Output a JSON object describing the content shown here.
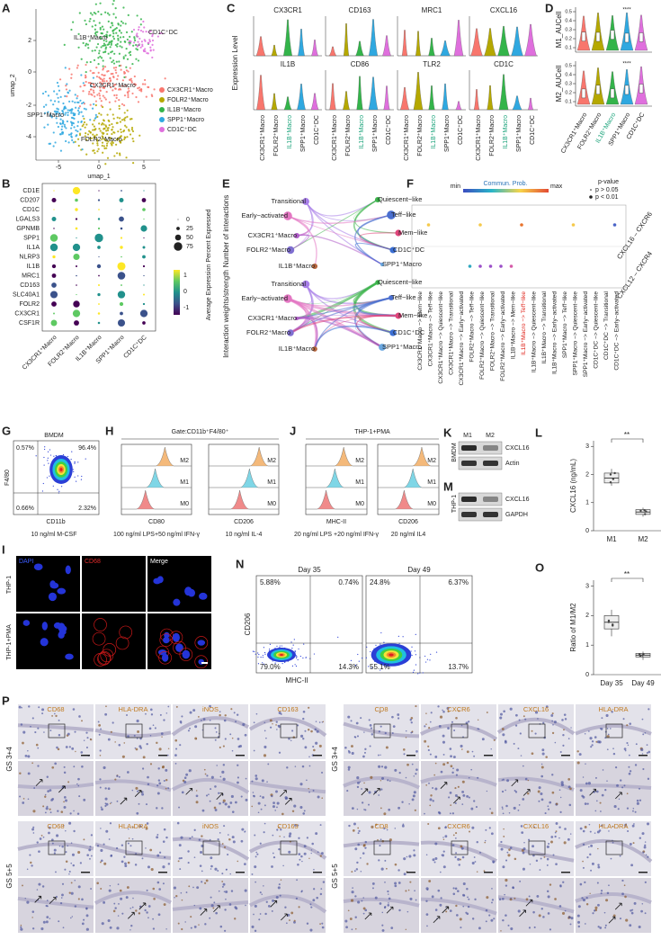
{
  "cell_types": [
    {
      "name": "CX3CR1⁺Macro",
      "color": "#f8766d"
    },
    {
      "name": "FOLR2⁺Macro",
      "color": "#b5a800"
    },
    {
      "name": "IL1B⁺Macro",
      "color": "#33b44a"
    },
    {
      "name": "SPP1⁺Macro",
      "color": "#2fa8e0"
    },
    {
      "name": "CD1C⁺DC",
      "color": "#df6fdd"
    }
  ],
  "A": {
    "letter": "A",
    "x_label": "umap_1",
    "y_label": "umap_2",
    "x_ticks": [
      "-5",
      "0",
      "5"
    ],
    "y_ticks": [
      "2",
      "0",
      "-2",
      "-4"
    ]
  },
  "B": {
    "letter": "B",
    "genes": [
      "CD1E",
      "CD207",
      "CD1C",
      "LGALS3",
      "GPNMB",
      "SPP1",
      "IL1A",
      "NLRP3",
      "IL1B",
      "MRC1",
      "CD163",
      "SLC40A1",
      "FOLR2",
      "CX3CR1",
      "CSF1R"
    ],
    "size_legend_title": "Percent Expressed",
    "size_legend": [
      "0",
      "25",
      "50",
      "75"
    ],
    "color_legend_title": "Average Expression",
    "color_legend": [
      "1",
      "0",
      "-1"
    ]
  },
  "C": {
    "letter": "C",
    "y_label": "Expression Level",
    "genes": [
      "CX3CR1",
      "CD163",
      "MRC1",
      "CXCL16",
      "IL1B",
      "CD86",
      "TLR2",
      "CD1C"
    ]
  },
  "D": {
    "letter": "D",
    "rows": [
      "M1_AUCell",
      "M2_AUCell"
    ],
    "yticks": [
      "0.5",
      "0.4",
      "0.3",
      "0.2",
      "0.1"
    ],
    "significance": "****"
  },
  "E": {
    "letter": "E",
    "titles": [
      "Number of interactions",
      "Interaction weights/strength"
    ],
    "nodes": [
      "Transitional",
      "Quiescent−like",
      "Early−activated",
      "Teff−like",
      "CX3CR1⁺Macro",
      "Mem−like",
      "FOLR2⁺Macro",
      "CD1C⁺DC",
      "IL1B⁺Macro",
      "SPP1⁺Macro"
    ]
  },
  "F": {
    "letter": "F",
    "legend_title": "Commun. Prob.",
    "min": "min",
    "max": "max",
    "p_title": "p-value",
    "p_labels": [
      "p > 0.05",
      "p < 0.01"
    ],
    "rows": [
      "CXCL16 – CXCR6",
      "CXCL12 – CXCR4"
    ],
    "columns": [
      "CX3CR1⁺Macro −> Mem−like",
      "CX3CR1⁺Macro −> Teff−like",
      "CX3CR1⁺Macro −> Quiescent−like",
      "CX3CR1⁺Macro −> Transitional",
      "CX3CR1⁺Macro −> Early−activated",
      "FOLR2⁺Macro −> Teff−like",
      "FOLR2⁺Macro −> Quiescent−like",
      "FOLR2⁺Macro −> Transitional",
      "FOLR2⁺Macro −> Early−activated",
      "IL1B⁺Macro −> Mem−like",
      "IL1B⁺Macro −> Teff−like",
      "IL1B⁺Macro −> Quiescent−like",
      "IL1B⁺Macro −> Transitional",
      "IL1B⁺Macro −> Early−activated",
      "SPP1⁺Macro −> Teff−like",
      "SPP1⁺Macro −> Quiescent−like",
      "SPP1⁺Macro −> Early−activated",
      "CD1C⁺DC −> Quiescent−like",
      "CD1C⁺DC −> Transitional",
      "CD1C⁺DC −> Early−activated"
    ]
  },
  "G": {
    "letter": "G",
    "title": "BMDM",
    "quadrants": [
      "0.57%",
      "96.4%",
      "0.66%",
      "2.32%"
    ],
    "x_label": "CD11b",
    "y_label": "F4/80",
    "caption": "10 ng/ml M-CSF"
  },
  "H": {
    "letter": "H",
    "header": "Gate:CD11b⁺F4/80⁺",
    "groups": [
      "M2",
      "M1",
      "M0"
    ],
    "hists": [
      {
        "x_label": "CD80",
        "caption": "100 ng/ml LPS+50 ng/ml IFN-γ"
      },
      {
        "x_label": "CD206",
        "caption": "10 ng/ml IL-4"
      }
    ]
  },
  "J": {
    "letter": "J",
    "header": "THP-1+PMA",
    "groups": [
      "M2",
      "M1",
      "M0"
    ],
    "hists": [
      {
        "x_label": "MHC-II",
        "caption": "20 ng/ml LPS +20 ng/ml IFN-γ"
      },
      {
        "x_label": "CD206",
        "caption": "20 ng/ml IL4"
      }
    ]
  },
  "K": {
    "letter": "K",
    "columns": [
      "M1",
      "M2"
    ],
    "side": "BMDM",
    "bands": [
      "CXCL16",
      "Actin"
    ]
  },
  "M": {
    "letter": "M",
    "side": "THP-1",
    "bands": [
      "CXCL16",
      "GAPDH"
    ]
  },
  "L": {
    "letter": "L",
    "y_label": "CXCL16 (ng/mL)",
    "yticks": [
      "0",
      "1",
      "2",
      "3"
    ],
    "categories": [
      "M1",
      "M2"
    ],
    "significance": "**"
  },
  "I": {
    "letter": "I",
    "columns": [
      "DAPI",
      "CD68",
      "Merge"
    ],
    "rows": [
      "THP-1",
      "THP-1+PMA"
    ]
  },
  "N": {
    "letter": "N",
    "titles": [
      "Day 35",
      "Day 49"
    ],
    "quadrants": [
      [
        "5.88%",
        "0.74%",
        "79.0%",
        "14.3%"
      ],
      [
        "24.8%",
        "6.37%",
        "55.1%",
        "13.7%"
      ]
    ],
    "x_label": "MHC-II",
    "y_label": "CD206"
  },
  "O": {
    "letter": "O",
    "y_label": "Ratio of M1/M2",
    "yticks": [
      "0",
      "1",
      "2",
      "3"
    ],
    "categories": [
      "Day 35",
      "Day 49"
    ],
    "significance": "**"
  },
  "P": {
    "letter": "P",
    "left_stains": [
      "CD68",
      "HLA-DRA",
      "iNOS",
      "CD163"
    ],
    "right_stains": [
      "CD8",
      "CXCR6",
      "CXCL16",
      "HLA-DRA"
    ],
    "rows": [
      "GS 3+4",
      "GS 5+5"
    ]
  }
}
